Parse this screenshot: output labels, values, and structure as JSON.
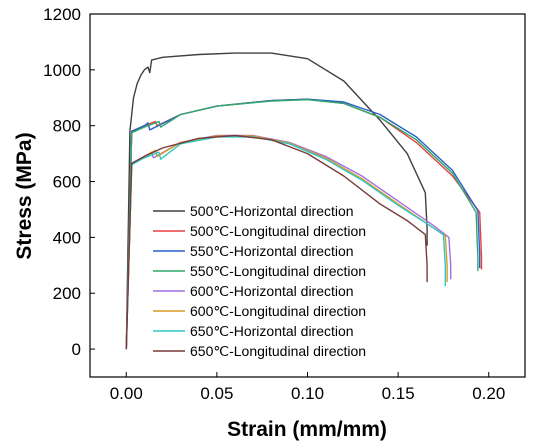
{
  "chart_data": {
    "type": "line",
    "xlabel": "Strain (mm/mm)",
    "ylabel": "Stress (MPa)",
    "xlim": [
      -0.02,
      0.22
    ],
    "ylim": [
      -100,
      1200
    ],
    "xticks": [
      "0.00",
      "0.05",
      "0.10",
      "0.15",
      "0.20"
    ],
    "xtick_values": [
      0.0,
      0.05,
      0.1,
      0.15,
      0.2
    ],
    "yticks": [
      "0",
      "200",
      "400",
      "600",
      "800",
      "1000",
      "1200"
    ],
    "ytick_values": [
      0,
      200,
      400,
      600,
      800,
      1000,
      1200
    ],
    "grid": false,
    "legend_position": "bottom-left",
    "series": [
      {
        "name": "500℃-Horizontal direction",
        "color": "#404040",
        "x": [
          0.0,
          0.002,
          0.004,
          0.006,
          0.008,
          0.01,
          0.012,
          0.013,
          0.014,
          0.02,
          0.04,
          0.06,
          0.08,
          0.1,
          0.12,
          0.14,
          0.155,
          0.165,
          0.166,
          0.166
        ],
        "y": [
          0,
          780,
          900,
          950,
          980,
          1000,
          1010,
          990,
          1035,
          1045,
          1055,
          1060,
          1060,
          1040,
          960,
          820,
          700,
          560,
          430,
          370
        ]
      },
      {
        "name": "500℃-Longitudinal direction",
        "color": "#e84040",
        "x": [
          0.0,
          0.003,
          0.01,
          0.016,
          0.017,
          0.03,
          0.05,
          0.08,
          0.1,
          0.12,
          0.14,
          0.16,
          0.18,
          0.195,
          0.196,
          0.196
        ],
        "y": [
          0,
          780,
          800,
          815,
          800,
          840,
          870,
          890,
          895,
          880,
          830,
          740,
          620,
          490,
          330,
          285
        ]
      },
      {
        "name": "550℃-Horizontal direction",
        "color": "#2a5ec8",
        "x": [
          0.0,
          0.003,
          0.01,
          0.012,
          0.013,
          0.03,
          0.05,
          0.08,
          0.1,
          0.12,
          0.14,
          0.16,
          0.18,
          0.194,
          0.195,
          0.195
        ],
        "y": [
          0,
          780,
          800,
          810,
          785,
          840,
          870,
          890,
          895,
          885,
          840,
          760,
          640,
          495,
          340,
          290
        ]
      },
      {
        "name": "550℃-Longitudinal direction",
        "color": "#2ea86a",
        "x": [
          0.0,
          0.003,
          0.01,
          0.018,
          0.019,
          0.03,
          0.05,
          0.08,
          0.1,
          0.12,
          0.14,
          0.16,
          0.18,
          0.193,
          0.194,
          0.194
        ],
        "y": [
          0,
          775,
          795,
          815,
          795,
          840,
          870,
          888,
          893,
          880,
          830,
          750,
          630,
          490,
          320,
          280
        ]
      },
      {
        "name": "600℃-Horizontal direction",
        "color": "#a070e0",
        "x": [
          0.0,
          0.003,
          0.01,
          0.014,
          0.015,
          0.03,
          0.05,
          0.07,
          0.09,
          0.11,
          0.13,
          0.15,
          0.17,
          0.178,
          0.179,
          0.179
        ],
        "y": [
          0,
          665,
          690,
          705,
          685,
          740,
          765,
          765,
          740,
          690,
          620,
          530,
          440,
          400,
          300,
          250
        ]
      },
      {
        "name": "600℃-Longitudinal direction",
        "color": "#d89a20",
        "x": [
          0.0,
          0.003,
          0.01,
          0.016,
          0.017,
          0.03,
          0.05,
          0.07,
          0.09,
          0.11,
          0.13,
          0.15,
          0.168,
          0.176,
          0.177,
          0.177
        ],
        "y": [
          0,
          660,
          690,
          712,
          690,
          740,
          763,
          763,
          738,
          685,
          610,
          520,
          440,
          405,
          300,
          240
        ]
      },
      {
        "name": "650℃-Horizontal direction",
        "color": "#30c8c8",
        "x": [
          0.0,
          0.003,
          0.01,
          0.018,
          0.019,
          0.03,
          0.05,
          0.07,
          0.09,
          0.11,
          0.13,
          0.15,
          0.168,
          0.175,
          0.176,
          0.176
        ],
        "y": [
          0,
          660,
          685,
          705,
          680,
          735,
          760,
          760,
          735,
          680,
          605,
          515,
          440,
          410,
          300,
          225
        ]
      },
      {
        "name": "650℃-Longitudinal direction",
        "color": "#7a3a3a",
        "x": [
          0.0,
          0.003,
          0.01,
          0.02,
          0.04,
          0.06,
          0.08,
          0.1,
          0.12,
          0.14,
          0.155,
          0.165,
          0.166,
          0.166
        ],
        "y": [
          0,
          665,
          690,
          720,
          755,
          765,
          750,
          700,
          620,
          520,
          460,
          410,
          300,
          240
        ]
      }
    ]
  }
}
